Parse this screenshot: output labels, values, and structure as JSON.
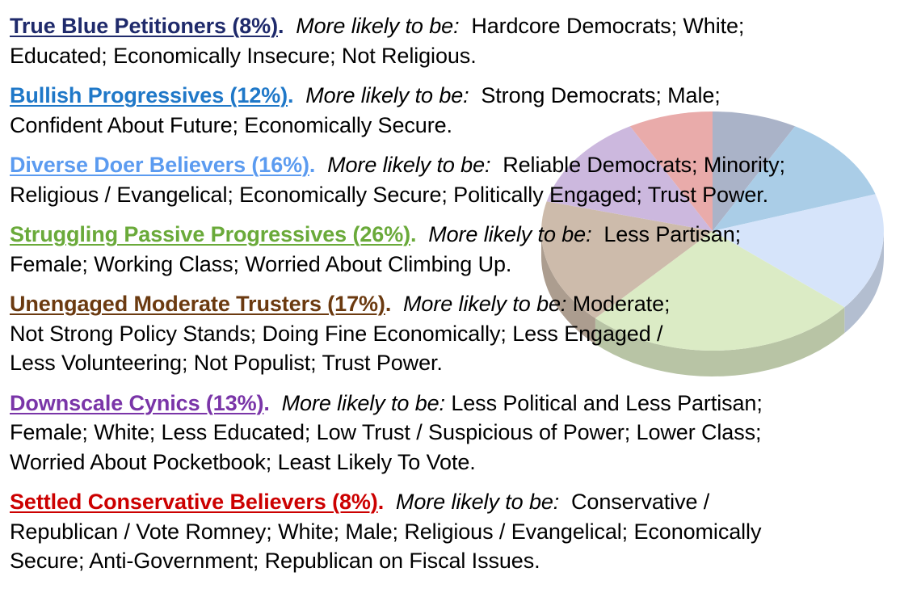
{
  "segments": [
    {
      "name": "True Blue Petitioners (8%)",
      "color": "#1f2a6b",
      "intro": "More likely to be:",
      "line1": "Hardcore Democrats;  White;",
      "lines": [
        "Educated;   Economically Insecure;  Not Religious."
      ]
    },
    {
      "name": "Bullish Progressives (12%)",
      "color": "#1f78c8",
      "intro": "More likely to be:",
      "line1": "Strong Democrats;  Male;",
      "lines": [
        "Confident About Future;  Economically Secure."
      ]
    },
    {
      "name": "Diverse Doer Believers (16%)",
      "color": "#5b9bf0",
      "intro": "More likely to be:",
      "line1": "Reliable Democrats;  Minority;",
      "lines": [
        "Religious / Evangelical;  Economically Secure;  Politically Engaged; Trust  Power."
      ]
    },
    {
      "name": "Struggling Passive Progressives (26%)",
      "color": "#6aaa3a",
      "intro": "More likely to be:",
      "line1": "Less Partisan;",
      "lines": [
        "Female;  Working Class;  Worried About Climbing Up."
      ]
    },
    {
      "name": "Unengaged Moderate Trusters (17%)",
      "color": "#6b3a10",
      "intro": "More likely to be:",
      "line1": "Moderate;",
      "lines": [
        "Not Strong Policy Stands;  Doing Fine Economically;  Less Engaged /",
        "Less Volunteering;  Not Populist;  Trust Power."
      ]
    },
    {
      "name": "Downscale Cynics (13%)",
      "color": "#7a35a8",
      "intro": "More likely to be:",
      "line1": "Less Political and Less Partisan;",
      "lines": [
        "Female;  White;  Less Educated;  Low Trust / Suspicious of Power;  Lower Class;",
        "Worried About Pocketbook;  Least Likely To Vote."
      ]
    },
    {
      "name": "Settled Conservative Believers (8%)",
      "color": "#cc0000",
      "intro": "More likely to be:",
      "line1": "Conservative /",
      "lines": [
        "Republican / Vote Romney;  White;  Male;  Religious / Evangelical;  Economically",
        "Secure;   Anti-Government;  Republican on Fiscal Issues."
      ]
    }
  ],
  "chart_data": {
    "type": "pie",
    "title": "",
    "start_angle": "12 o'clock, clockwise",
    "categories": [
      "True Blue Petitioners",
      "Bullish Progressives",
      "Diverse Doer Believers",
      "Struggling Passive Progressives",
      "Unengaged Moderate Trusters",
      "Downscale Cynics",
      "Settled Conservative Believers"
    ],
    "values": [
      8,
      12,
      16,
      26,
      17,
      13,
      8
    ],
    "unit": "%",
    "colors": [
      "#a3adc4",
      "#a3c9e6",
      "#d3e2fa",
      "#d9eac1",
      "#c9b6a4",
      "#c8b3dc",
      "#e8a4a3"
    ],
    "style": "3d tilted pie, semi-transparent behind text"
  }
}
